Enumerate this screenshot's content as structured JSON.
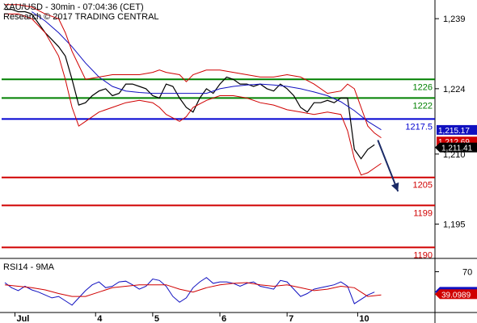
{
  "header": {
    "symbol_line": "XAU/USD - 30min - 07:04:36 (CET)",
    "copyright": "Research © 2017 TRADING CENTRAL"
  },
  "colors": {
    "price": "#000000",
    "ma": "#1010c0",
    "bollinger": "#d00000",
    "resistance": "#008000",
    "pivot": "#0000d0",
    "support": "#d00000",
    "rsi": "#1010c0",
    "rsi_ma": "#d00000",
    "arrow": "#1a2a66",
    "last_price_bg": "#000000",
    "ma_tag_bg": "#1010c0",
    "upper_band_tag_bg": "#d00000"
  },
  "chart_data": [
    {
      "type": "line",
      "name": "price-panel",
      "ylim": [
        1188,
        1243
      ],
      "y_ticks": [
        {
          "value": 1239,
          "label": "1,239"
        },
        {
          "value": 1224,
          "label": "1,224"
        },
        {
          "value": 1210,
          "label": "1,210"
        },
        {
          "value": 1195,
          "label": "1,195"
        }
      ],
      "x_ticks": [
        {
          "x": 1.5,
          "label": "Jul"
        },
        {
          "x": 13.5,
          "label": "4"
        },
        {
          "x": 22,
          "label": "5"
        },
        {
          "x": 32,
          "label": "6"
        },
        {
          "x": 42,
          "label": "7"
        },
        {
          "x": 52.5,
          "label": "10"
        }
      ],
      "xlim": [
        0,
        64
      ],
      "levels": [
        {
          "value": 1226,
          "label": "1226",
          "kind": "resistance"
        },
        {
          "value": 1222,
          "label": "1222",
          "kind": "resistance"
        },
        {
          "value": 1217.5,
          "label": "1217.5",
          "kind": "pivot"
        },
        {
          "value": 1205,
          "label": "1205",
          "kind": "support"
        },
        {
          "value": 1199,
          "label": "1199",
          "kind": "support"
        },
        {
          "value": 1190,
          "label": "1190",
          "kind": "support"
        }
      ],
      "value_tags": [
        {
          "value": 1215.17,
          "label": "1,215.17",
          "kind": "ma"
        },
        {
          "value": 1212.69,
          "label": "1,212.69",
          "kind": "upper_band"
        },
        {
          "value": 1211.41,
          "label": "1,211.41",
          "kind": "last"
        }
      ],
      "arrow": {
        "from": [
          55.5,
          1213
        ],
        "to": [
          58.5,
          1202
        ]
      },
      "series": [
        {
          "kind": "price",
          "x": [
            0,
            1,
            2,
            3,
            4,
            5,
            6,
            7,
            8,
            9,
            10,
            11,
            12,
            13,
            14,
            15,
            16,
            17,
            18,
            19,
            20,
            21,
            22,
            23,
            24,
            25,
            26,
            27,
            28,
            29,
            30,
            31,
            32,
            33,
            34,
            35,
            36,
            37,
            38,
            39,
            40,
            41,
            42,
            43,
            44,
            45,
            46,
            47,
            48,
            49,
            50,
            51,
            52,
            53,
            54,
            55
          ],
          "y": [
            1241,
            1241,
            1240.5,
            1240.5,
            1240,
            1238,
            1236,
            1234.5,
            1233,
            1231,
            1226,
            1220.5,
            1221,
            1222.5,
            1223.5,
            1224,
            1222.5,
            1223,
            1225,
            1225,
            1224.5,
            1224,
            1222.5,
            1222,
            1225,
            1224.5,
            1222,
            1220,
            1219,
            1222,
            1224,
            1223,
            1225,
            1226.5,
            1226,
            1225,
            1225,
            1224.5,
            1225,
            1224,
            1223.5,
            1225,
            1224,
            1222.5,
            1220,
            1219,
            1221,
            1221,
            1221.5,
            1221,
            1222,
            1222,
            1211,
            1209,
            1211,
            1212
          ]
        },
        {
          "kind": "ma",
          "x": [
            4,
            6,
            8,
            10,
            12,
            14,
            16,
            18,
            20,
            22,
            24,
            26,
            28,
            30,
            32,
            34,
            36,
            38,
            40,
            42,
            44,
            46,
            48,
            50,
            52,
            54,
            56
          ],
          "y": [
            1240.5,
            1238.5,
            1236,
            1233,
            1229.5,
            1226.5,
            1224.5,
            1223.5,
            1223.2,
            1223,
            1223,
            1223,
            1223,
            1223,
            1224,
            1224.5,
            1224.8,
            1225,
            1224.8,
            1224.5,
            1224,
            1223.3,
            1222.5,
            1221.2,
            1219.3,
            1217,
            1215.2
          ]
        },
        {
          "kind": "bollinger_upper",
          "x": [
            0,
            2,
            4,
            6,
            8,
            9,
            10,
            11,
            12,
            14,
            16,
            18,
            20,
            22,
            23,
            24,
            26,
            27,
            28,
            30,
            32,
            34,
            36,
            38,
            40,
            42,
            44,
            46,
            48,
            50,
            51,
            52,
            53,
            54,
            55,
            56
          ],
          "y": [
            1242,
            1242,
            1241.5,
            1240,
            1239,
            1236,
            1232,
            1229,
            1226,
            1226.5,
            1227,
            1227,
            1227,
            1227.5,
            1228,
            1227.5,
            1227,
            1225.5,
            1227,
            1228,
            1228,
            1227.5,
            1227,
            1226.5,
            1226.5,
            1227,
            1226.5,
            1225,
            1223,
            1223.5,
            1225,
            1224,
            1220,
            1216,
            1214.5,
            1213.5
          ]
        },
        {
          "kind": "bollinger_lower",
          "x": [
            0,
            2,
            4,
            6,
            8,
            9,
            10,
            11,
            12,
            14,
            16,
            18,
            20,
            22,
            23,
            24,
            26,
            27,
            28,
            30,
            32,
            34,
            36,
            38,
            40,
            42,
            44,
            46,
            48,
            50,
            51,
            52,
            53,
            54,
            55,
            56
          ],
          "y": [
            1240,
            1240,
            1239,
            1236,
            1231,
            1226,
            1220,
            1216,
            1217,
            1219,
            1220,
            1221,
            1221.5,
            1221,
            1220,
            1218.5,
            1217,
            1218,
            1220,
            1221.5,
            1222.5,
            1222.5,
            1222,
            1221,
            1220.5,
            1219.5,
            1219,
            1218.5,
            1219,
            1218.5,
            1215,
            1209,
            1205.5,
            1206,
            1207,
            1208
          ]
        }
      ]
    },
    {
      "type": "line",
      "name": "rsi-panel",
      "title": "RSI14 - 9MA",
      "ylim": [
        15,
        85
      ],
      "y_ticks": [
        {
          "value": 70,
          "label": "70"
        }
      ],
      "value_tags": [
        {
          "value": 42.3729,
          "label": "42.3729",
          "kind": "rsi"
        },
        {
          "value": 39.0989,
          "label": "39.0989",
          "kind": "rsi_ma"
        }
      ],
      "series": [
        {
          "kind": "rsi",
          "x": [
            0,
            1,
            2,
            3,
            4,
            5,
            6,
            7,
            8,
            9,
            10,
            11,
            12,
            13,
            14,
            15,
            16,
            17,
            18,
            19,
            20,
            21,
            22,
            23,
            24,
            25,
            26,
            27,
            28,
            29,
            30,
            31,
            32,
            33,
            34,
            35,
            36,
            37,
            38,
            39,
            40,
            41,
            42,
            43,
            44,
            45,
            46,
            47,
            48,
            49,
            50,
            51,
            52,
            53,
            54,
            55
          ],
          "y": [
            55,
            48,
            44,
            50,
            45,
            42,
            38,
            34,
            36,
            30,
            24,
            34,
            44,
            52,
            56,
            48,
            50,
            56,
            57,
            52,
            46,
            50,
            60,
            58,
            50,
            36,
            28,
            34,
            48,
            56,
            62,
            54,
            56,
            56,
            54,
            50,
            54,
            56,
            50,
            48,
            46,
            58,
            56,
            46,
            36,
            40,
            46,
            48,
            50,
            52,
            56,
            50,
            26,
            32,
            38,
            42
          ]
        },
        {
          "kind": "rsi_ma",
          "x": [
            0,
            2,
            4,
            6,
            8,
            10,
            12,
            14,
            16,
            18,
            20,
            22,
            24,
            26,
            28,
            30,
            32,
            34,
            36,
            38,
            40,
            42,
            44,
            46,
            48,
            50,
            52,
            54,
            56
          ],
          "y": [
            52,
            50,
            48,
            45,
            40,
            36,
            36,
            42,
            48,
            50,
            52,
            52,
            52,
            46,
            42,
            48,
            52,
            54,
            55,
            52,
            50,
            52,
            48,
            44,
            46,
            50,
            48,
            36,
            38
          ]
        }
      ]
    }
  ]
}
